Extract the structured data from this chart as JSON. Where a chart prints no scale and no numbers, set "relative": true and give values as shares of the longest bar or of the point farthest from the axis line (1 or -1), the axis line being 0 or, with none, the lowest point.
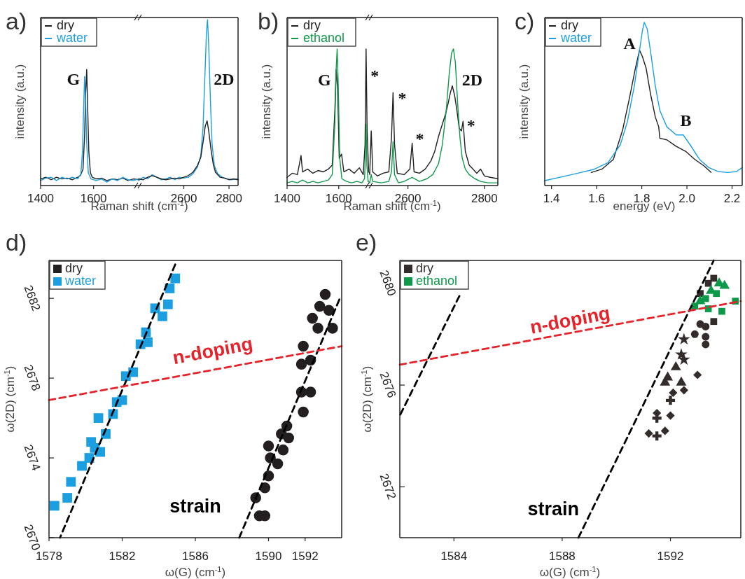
{
  "chart_data": [
    {
      "type": "line",
      "title": "a)",
      "xlabel": "Raman shift (cm$^{-1}$)",
      "ylabel": "intensity (a.u.)",
      "relative": true,
      "xlim": [
        1400,
        1770
      ],
      "xticks": [
        1400,
        1600
      ],
      "legend": "top left",
      "series": [
        {
          "name": "dry",
          "color": "#231f20",
          "x": [
            1400,
            1420,
            1440,
            1460,
            1480,
            1500,
            1520,
            1540,
            1550,
            1560,
            1566,
            1570,
            1574,
            1578,
            1582,
            1588,
            1595,
            1610,
            1630,
            1650,
            1670,
            1690,
            1710,
            1730,
            1750,
            1770
          ],
          "values": [
            0.057,
            0.071,
            0.05,
            0.071,
            0.057,
            0.064,
            0.05,
            0.071,
            0.086,
            0.14,
            0.43,
            0.79,
            1.0,
            0.64,
            0.29,
            0.11,
            0.071,
            0.057,
            0.064,
            0.043,
            0.057,
            0.05,
            0.064,
            0.043,
            0.057,
            0.05
          ]
        },
        {
          "name": "water",
          "color": "#1c9fe0",
          "x": [
            1400,
            1420,
            1440,
            1460,
            1480,
            1500,
            1520,
            1540,
            1552,
            1558,
            1563,
            1566,
            1570,
            1574,
            1580,
            1590,
            1610,
            1630,
            1650,
            1670,
            1690,
            1710,
            1730,
            1750,
            1770
          ],
          "values": [
            0.043,
            0.064,
            0.071,
            0.043,
            0.071,
            0.057,
            0.071,
            0.057,
            0.1,
            0.29,
            0.71,
            0.94,
            0.71,
            0.36,
            0.11,
            0.057,
            0.043,
            0.057,
            0.029,
            0.057,
            0.043,
            0.071,
            0.05,
            0.043,
            0.057
          ]
        }
      ],
      "annotations": [
        "G"
      ]
    },
    {
      "type": "line",
      "relative": true,
      "xlim": [
        2400,
        2840
      ],
      "xticks": [
        2600,
        2800
      ],
      "series": [
        {
          "color": "#1c9fe0",
          "x": [
            2400,
            2420,
            2440,
            2460,
            2480,
            2500,
            2520,
            2540,
            2560,
            2580,
            2600,
            2620,
            2640,
            2660,
            2675,
            2685,
            2693,
            2700,
            2705,
            2710,
            2718,
            2725,
            2735,
            2750,
            2770,
            2790,
            2810,
            2840
          ],
          "values": [
            0.03,
            0.05,
            0.04,
            0.065,
            0.05,
            0.035,
            0.04,
            0.05,
            0.035,
            0.05,
            0.045,
            0.05,
            0.07,
            0.11,
            0.18,
            0.35,
            0.65,
            0.92,
            1.0,
            0.85,
            0.5,
            0.25,
            0.12,
            0.07,
            0.05,
            0.04,
            0.035,
            0.04
          ]
        },
        {
          "color": "#231f20",
          "x": [
            2400,
            2420,
            2440,
            2460,
            2480,
            2500,
            2520,
            2540,
            2560,
            2580,
            2600,
            2620,
            2640,
            2660,
            2675,
            2685,
            2695,
            2703,
            2710,
            2720,
            2730,
            2740,
            2760,
            2780,
            2800,
            2820,
            2840
          ],
          "values": [
            0.04,
            0.035,
            0.05,
            0.06,
            0.05,
            0.04,
            0.035,
            0.04,
            0.045,
            0.04,
            0.05,
            0.06,
            0.08,
            0.12,
            0.17,
            0.26,
            0.36,
            0.39,
            0.33,
            0.22,
            0.13,
            0.08,
            0.05,
            0.045,
            0.035,
            0.04,
            0.035
          ]
        }
      ],
      "annotations": [
        "2D"
      ]
    },
    {
      "type": "line",
      "title": "b)",
      "xlabel": "Raman shift (cm$^{-1}$)",
      "ylabel": "intensity (a.u.)",
      "relative": true,
      "xlim": [
        1400,
        1720
      ],
      "xticks": [
        1400,
        1600
      ],
      "legend": "top left",
      "series": [
        {
          "name": "dry",
          "color": "#231f20",
          "x": [
            1400,
            1420,
            1440,
            1454,
            1460,
            1480,
            1500,
            1520,
            1540,
            1560,
            1575,
            1585,
            1590,
            1596,
            1602,
            1611,
            1620,
            1640,
            1660,
            1680,
            1695,
            1702,
            1706,
            1710,
            1716,
            1720
          ],
          "values": [
            0.06,
            0.09,
            0.08,
            0.22,
            0.1,
            0.12,
            0.09,
            0.11,
            0.1,
            0.12,
            0.15,
            0.55,
            0.85,
            0.7,
            0.2,
            0.23,
            0.1,
            0.12,
            0.09,
            0.13,
            0.08,
            0.3,
            1.0,
            0.4,
            0.1,
            0.09
          ]
        },
        {
          "name": "ethanol",
          "color": "#11994a",
          "x": [
            1400,
            1420,
            1440,
            1460,
            1480,
            1500,
            1520,
            1540,
            1560,
            1575,
            1585,
            1590,
            1594,
            1598,
            1604,
            1612,
            1630,
            1650,
            1670,
            1690,
            1700,
            1703,
            1706,
            1709,
            1714,
            1720
          ],
          "values": [
            0.02,
            0.03,
            0.02,
            0.04,
            0.02,
            0.03,
            0.02,
            0.03,
            0.04,
            0.08,
            0.45,
            0.85,
            1.0,
            0.75,
            0.2,
            0.05,
            0.03,
            0.02,
            0.03,
            0.02,
            0.05,
            0.2,
            0.45,
            0.15,
            0.03,
            0.02
          ]
        }
      ],
      "annotations": [
        "G"
      ]
    },
    {
      "type": "line",
      "relative": true,
      "xlim": [
        2500,
        2835
      ],
      "xticks": [
        2600,
        2800
      ],
      "series": [
        {
          "color": "#231f20",
          "x": [
            2500,
            2504,
            2508,
            2520,
            2535,
            2550,
            2557,
            2561,
            2565,
            2572,
            2590,
            2605,
            2611,
            2616,
            2630,
            2645,
            2660,
            2670,
            2680,
            2690,
            2698,
            2705,
            2711,
            2716,
            2722,
            2728,
            2734,
            2740,
            2744,
            2750,
            2760,
            2770,
            2780,
            2790,
            2800,
            2815,
            2835
          ],
          "values": [
            0.08,
            0.4,
            0.1,
            0.07,
            0.09,
            0.1,
            0.35,
            0.68,
            0.3,
            0.09,
            0.08,
            0.12,
            0.31,
            0.1,
            0.09,
            0.12,
            0.18,
            0.25,
            0.36,
            0.45,
            0.52,
            0.6,
            0.68,
            0.73,
            0.66,
            0.55,
            0.42,
            0.4,
            0.47,
            0.25,
            0.15,
            0.12,
            0.09,
            0.12,
            0.07,
            0.06,
            0.05
          ]
        },
        {
          "color": "#11994a",
          "x": [
            2500,
            2504,
            2508,
            2530,
            2550,
            2557,
            2561,
            2565,
            2575,
            2590,
            2611,
            2630,
            2650,
            2665,
            2680,
            2690,
            2700,
            2708,
            2714,
            2719,
            2724,
            2730,
            2736,
            2742,
            2750,
            2760,
            2775,
            2790,
            2810,
            2835
          ],
          "values": [
            0.02,
            0.08,
            0.03,
            0.02,
            0.03,
            0.1,
            0.32,
            0.08,
            0.02,
            0.03,
            0.06,
            0.03,
            0.05,
            0.08,
            0.16,
            0.3,
            0.55,
            0.82,
            0.97,
            1.0,
            0.9,
            0.6,
            0.35,
            0.2,
            0.12,
            0.08,
            0.05,
            0.03,
            0.02,
            0.02
          ]
        }
      ],
      "annotations": [
        "*",
        "*",
        "*",
        "2D",
        "*"
      ]
    },
    {
      "type": "line",
      "title": "c)",
      "xlabel": "energy (eV)",
      "ylabel": "intensity (a.u.)",
      "relative": true,
      "xlim": [
        1.37,
        2.245
      ],
      "xticks": [
        1.4,
        1.6,
        1.8,
        {
          "value": 2,
          "label": "2.0"
        },
        2.2
      ],
      "legend": "top left",
      "series": [
        {
          "name": "dry",
          "color": "#231f20",
          "x": [
            1.576,
            1.623,
            1.674,
            1.715,
            1.746,
            1.772,
            1.79,
            1.803,
            1.819,
            1.839,
            1.86,
            1.875,
            1.88,
            1.911,
            1.953,
            1.994,
            2.035,
            2.076,
            2.107
          ],
          "values": [
            0.08,
            0.1,
            0.16,
            0.34,
            0.54,
            0.72,
            0.83,
            0.79,
            0.72,
            0.56,
            0.42,
            0.36,
            0.29,
            0.28,
            0.24,
            0.21,
            0.16,
            0.12,
            0.08
          ]
        },
        {
          "name": "water",
          "color": "#1c9fe0",
          "x": [
            1.37,
            1.5,
            1.59,
            1.65,
            1.705,
            1.736,
            1.767,
            1.788,
            1.803,
            1.811,
            1.824,
            1.839,
            1.86,
            1.88,
            1.911,
            1.953,
            1.984,
            2.014,
            2.056,
            2.097,
            2.138,
            2.18,
            2.22,
            2.245
          ],
          "values": [
            0.03,
            0.07,
            0.1,
            0.14,
            0.25,
            0.39,
            0.61,
            0.81,
            0.95,
            1.0,
            0.96,
            0.82,
            0.61,
            0.46,
            0.36,
            0.31,
            0.31,
            0.25,
            0.16,
            0.11,
            0.086,
            0.08,
            0.086,
            0.11
          ]
        }
      ],
      "annotations": [
        "A",
        "B"
      ]
    },
    {
      "type": "scatter",
      "title": "d)",
      "xlabel": "ω(G) (cm$^{-1}$)",
      "ylabel": "ω(2D) (cm$^{-1}$)",
      "xlim": [
        1578,
        1594
      ],
      "xticks": [
        1578,
        1582,
        1586,
        1590,
        1592
      ],
      "ylim": [
        2670,
        2683.9
      ],
      "yticks": [
        2670,
        2674,
        2678,
        2682
      ],
      "legend": "top left",
      "series": [
        {
          "name": "dry",
          "color": "#231f20",
          "marker": "circle",
          "x": [
            1589.3,
            1589.5,
            1589.8,
            1589.8,
            1590.0,
            1590.5,
            1590.1,
            1590.0,
            1590.8,
            1590.7,
            1591.1,
            1591.0,
            1591.9,
            1591.8,
            1592.3,
            1591.8,
            1592.3,
            1591.9,
            1592.7,
            1593.5,
            1592.4,
            1593.3,
            1592.8,
            1593.1
          ],
          "values": [
            2672.0,
            2671.1,
            2671.1,
            2672.5,
            2673.1,
            2673.7,
            2674.0,
            2674.6,
            2674.4,
            2675.2,
            2675.0,
            2675.6,
            2676.3,
            2677.3,
            2677.3,
            2678.7,
            2678.9,
            2679.6,
            2680.5,
            2680.5,
            2681.0,
            2681.4,
            2681.6,
            2682.2
          ]
        },
        {
          "name": "water",
          "color": "#1c9fe0",
          "marker": "square",
          "x": [
            1578.3,
            1579.0,
            1579.2,
            1579.8,
            1580.2,
            1580.5,
            1580.8,
            1580.3,
            1581.1,
            1580.7,
            1581.5,
            1581.7,
            1582.0,
            1582.2,
            1582.6,
            1583.0,
            1583.4,
            1583.3,
            1583.8,
            1584.2,
            1584.5,
            1584.6,
            1584.9
          ],
          "values": [
            2671.6,
            2672.0,
            2672.8,
            2673.6,
            2674.0,
            2674.5,
            2674.3,
            2674.8,
            2675.2,
            2676.0,
            2676.2,
            2676.8,
            2676.9,
            2678.1,
            2678.3,
            2679.7,
            2679.8,
            2680.3,
            2681.5,
            2681.1,
            2681.7,
            2682.5,
            2683.0
          ]
        },
        {
          "name": "strain",
          "type": "line",
          "line_style": "dashed",
          "color": "#000000",
          "x": [
            1584.9,
            1578.6,
            1586.5,
            1588.4,
            1593.9
          ],
          "values": [
            2683.7,
            2670,
            null,
            2670,
            2682.0
          ]
        },
        {
          "name": "n-doping",
          "type": "line",
          "line_style": "dashed",
          "color": "#e5232a",
          "x": [
            1578,
            1594
          ],
          "values": [
            2676.9,
            2679.6
          ]
        }
      ]
    },
    {
      "type": "scatter",
      "title": "e)",
      "xlabel": "ω(G) (cm$^{-1}$)",
      "ylabel": "ω(2D) (cm$^{-1}$)",
      "xlim": [
        1582,
        1594.6
      ],
      "xticks": [
        1584,
        1588,
        1592
      ],
      "ylim": [
        2670,
        2680.9
      ],
      "yticks": [
        2672,
        2676,
        2680
      ],
      "legend": "top left",
      "series": [
        {
          "name": "dry",
          "color": "#342c2a",
          "marker": "square",
          "x": [
            1593.6,
            1593.4,
            1593.1,
            1593.6
          ],
          "values": [
            2680.2,
            2680.0,
            2679.6,
            2678.5
          ]
        },
        {
          "color": "#342c2a",
          "marker": "circle",
          "x": [
            1593.1,
            1593.3,
            1592.9,
            1593.3,
            1593.3
          ],
          "values": [
            2678.4,
            2678.3,
            2678.0,
            2677.9,
            2677.6
          ]
        },
        {
          "color": "#342c2a",
          "marker": "star",
          "x": [
            1592.5,
            1592.4,
            1592.5
          ],
          "values": [
            2677.8,
            2677.2,
            2677.0
          ]
        },
        {
          "color": "#342c2a",
          "marker": "triangle",
          "x": [
            1592.2,
            1591.9,
            1591.8,
            1592.4
          ],
          "values": [
            2676.7,
            2676.3,
            2676.1,
            2676.1
          ]
        },
        {
          "color": "#342c2a",
          "marker": "diamond",
          "x": [
            1593.0,
            1592.5,
            1592.1,
            1591.5,
            1592.0,
            1591.8,
            1591.2
          ],
          "values": [
            2676.4,
            2675.8,
            2675.7,
            2674.9,
            2674.8,
            2674.2,
            2674.1
          ]
        },
        {
          "color": "#342c2a",
          "marker": "cross",
          "x": [
            1592.0,
            1591.5,
            1591.5
          ],
          "values": [
            2675.4,
            2674.7,
            2674.0
          ]
        },
        {
          "name": "ethanol",
          "color": "#0c9a4a",
          "marker": "square",
          "x": [
            1592.9,
            1593.4,
            1593.9,
            1594.4,
            1593.3,
            1593.7
          ],
          "values": [
            2679.1,
            2679.0,
            2678.9,
            2679.3,
            2679.4,
            2679.6
          ]
        },
        {
          "color": "#0c9a4a",
          "marker": "triangle",
          "x": [
            1593.8,
            1594.0,
            1593.5,
            1593.1
          ],
          "values": [
            2680.0,
            2679.9,
            2679.7,
            2679.3
          ]
        },
        {
          "name": "strain",
          "type": "line",
          "line_style": "dashed",
          "color": "#000000",
          "x": [
            1584.2,
            1582,
            1586,
            1588.6,
            1593.6
          ],
          "values": [
            2679.5,
            2674.8,
            null,
            2670.0,
            2680.9
          ]
        },
        {
          "name": "n-doping",
          "type": "line",
          "line_style": "dashed",
          "color": "#e5232a",
          "x": [
            1582,
            1594.6
          ],
          "values": [
            2676.8,
            2679.3
          ]
        }
      ]
    }
  ]
}
